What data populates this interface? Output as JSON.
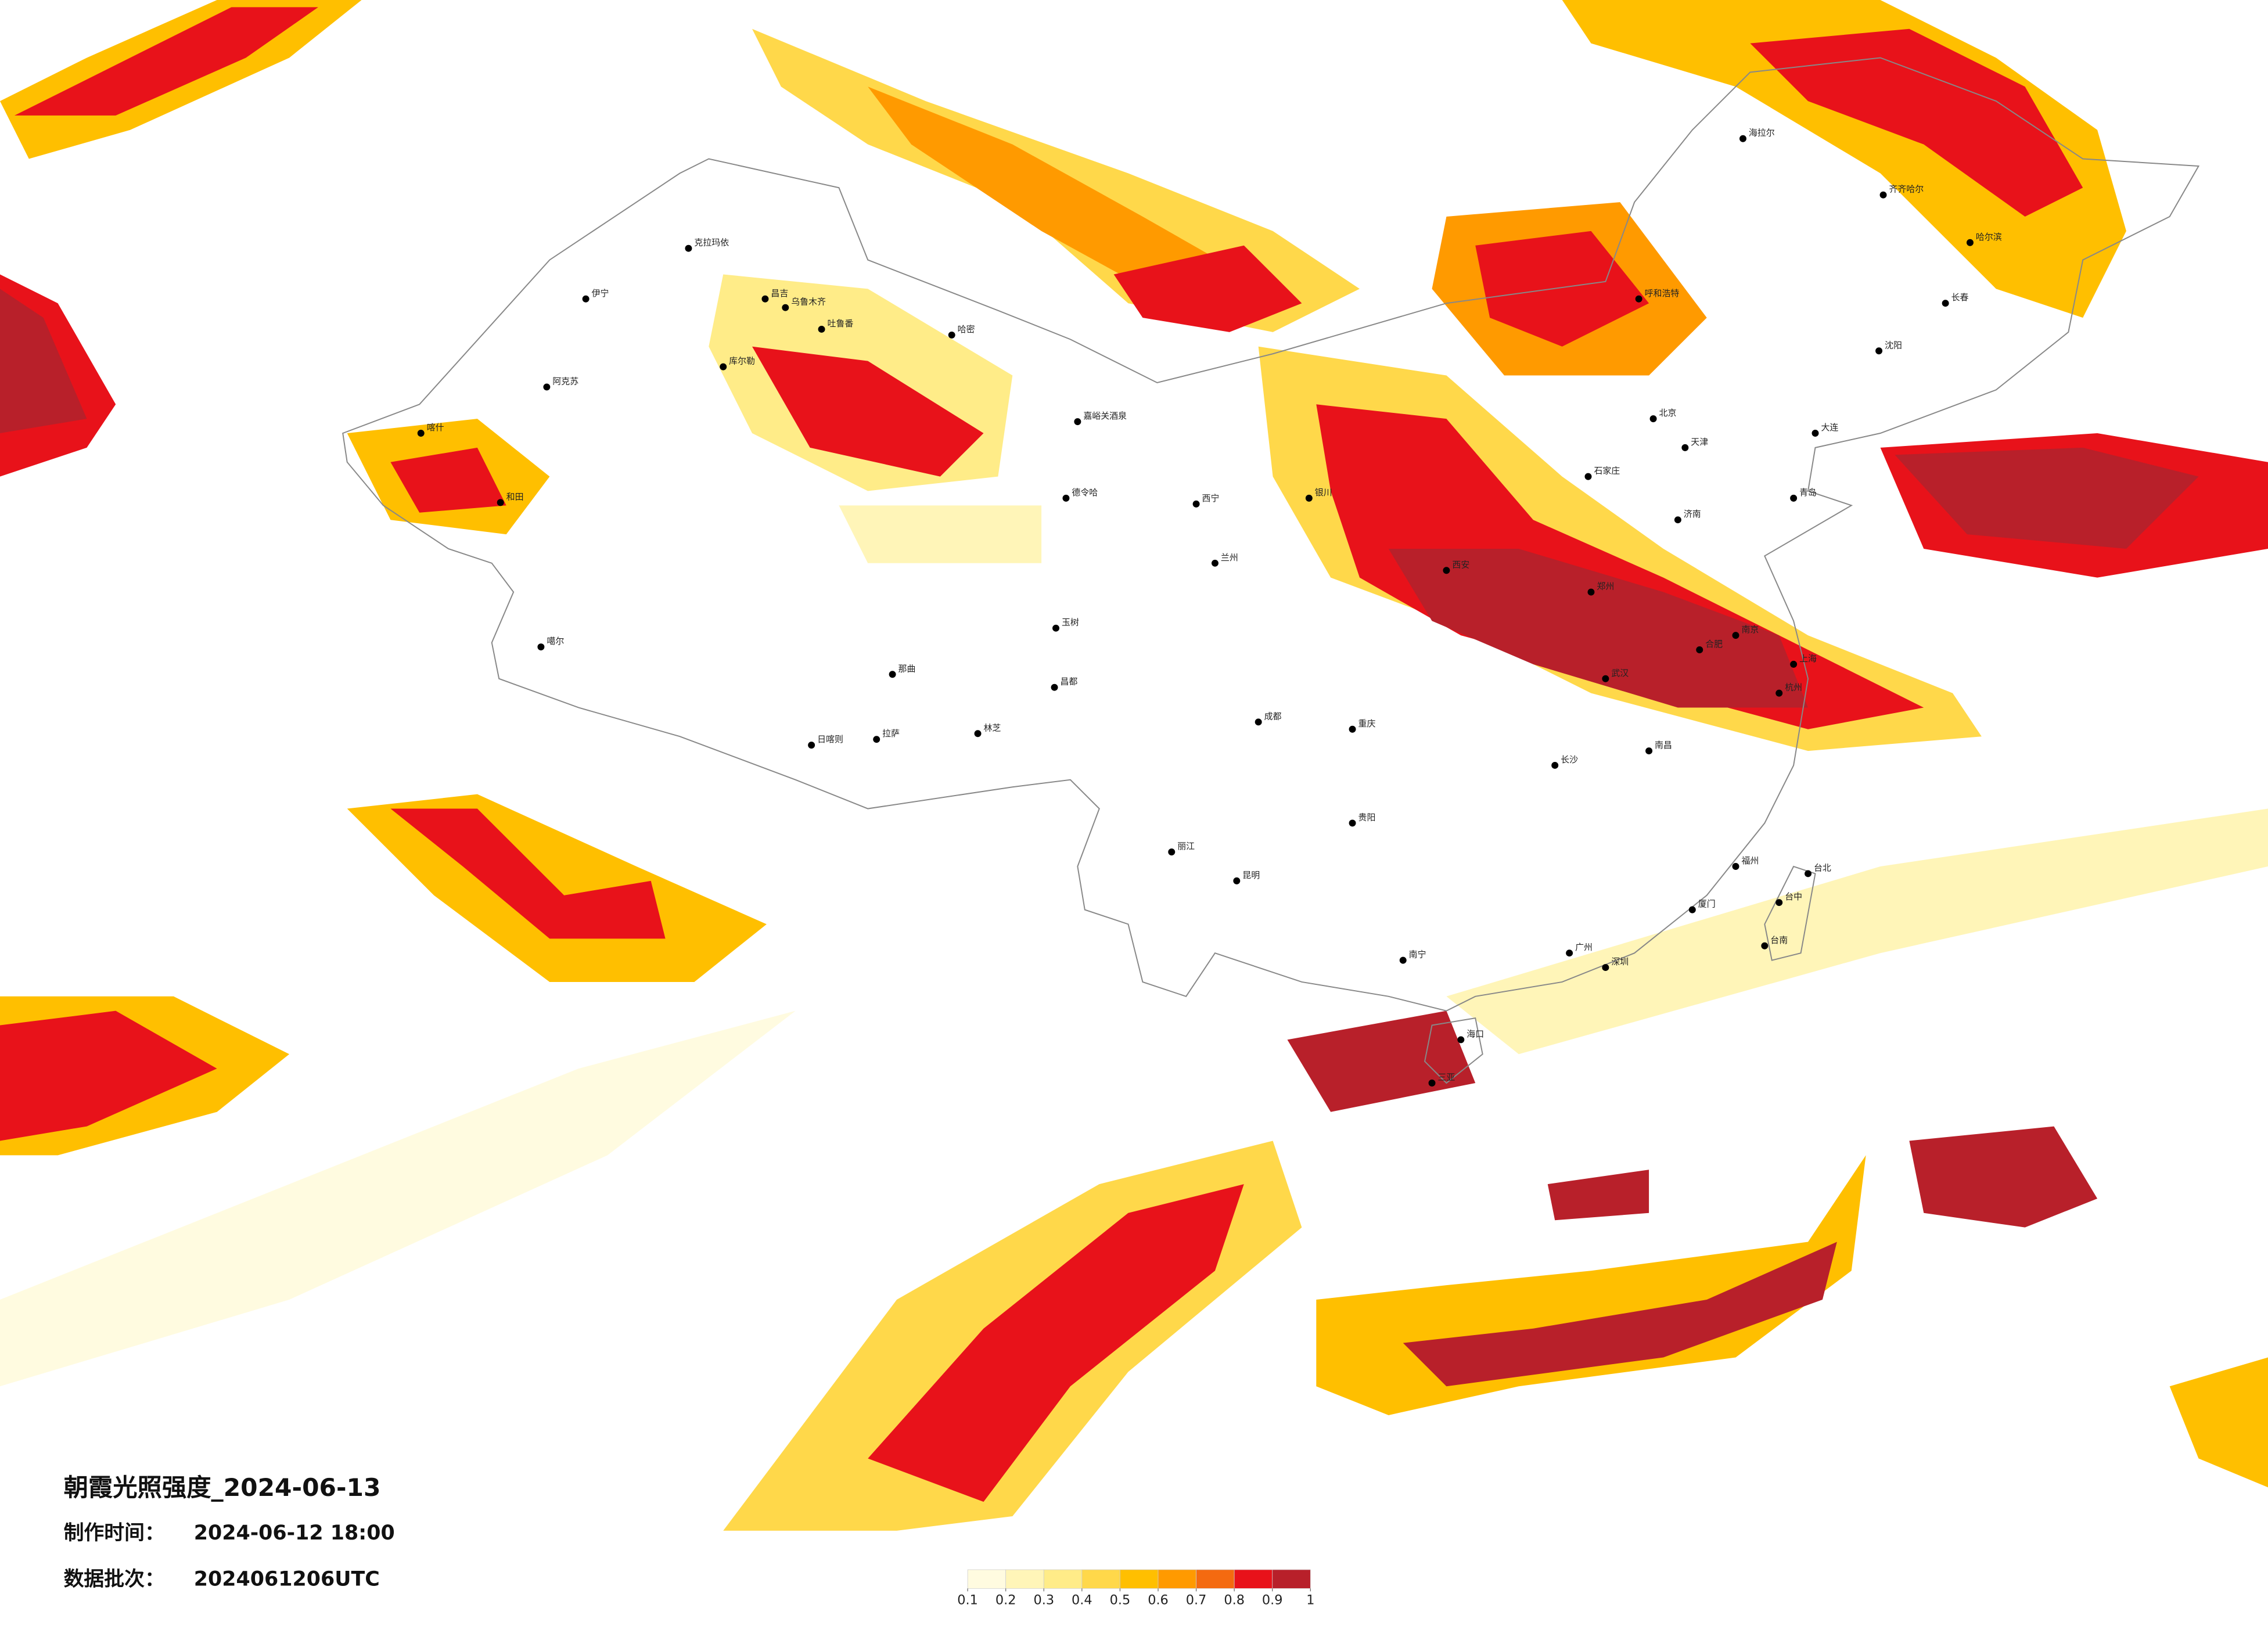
{
  "header": {
    "title": "朝霞光照强度_2024-06-13",
    "made_label": "制作时间：",
    "made_value": "2024-06-12 18:00",
    "batch_label": "数据批次：",
    "batch_value": "2024061206UTC"
  },
  "legend": {
    "ticks": [
      0.1,
      0.2,
      0.3,
      0.4,
      0.5,
      0.6,
      0.7,
      0.8,
      0.9,
      1
    ],
    "colors": [
      "#fffbe0",
      "#fff5b8",
      "#ffec88",
      "#ffd84a",
      "#ffbf00",
      "#ff9a00",
      "#f46a10",
      "#e8121a",
      "#b8202a"
    ]
  },
  "cities": [
    "克拉玛依",
    "伊宁",
    "阿克苏",
    "喀什",
    "和田",
    "昌吉",
    "乌鲁木齐",
    "吐鲁番",
    "库尔勒",
    "哈密",
    "嘉峪关酒泉",
    "德令哈",
    "噶尔",
    "玉树",
    "那曲",
    "昌都",
    "拉萨",
    "日喀则",
    "林芝",
    "西宁",
    "兰州",
    "银川",
    "呼和浩特",
    "海拉尔",
    "齐齐哈尔",
    "哈尔滨",
    "长春",
    "沈阳",
    "大连",
    "北京",
    "天津",
    "石家庄",
    "济南",
    "青岛",
    "郑州",
    "西安",
    "武汉",
    "南京",
    "上海",
    "杭州",
    "合肥",
    "长沙",
    "南昌",
    "福州",
    "厦门",
    "广州",
    "深圳",
    "南宁",
    "海口",
    "三亚",
    "昆明",
    "贵阳",
    "重庆",
    "成都",
    "台北",
    "台中",
    "台南",
    "丽江"
  ]
}
